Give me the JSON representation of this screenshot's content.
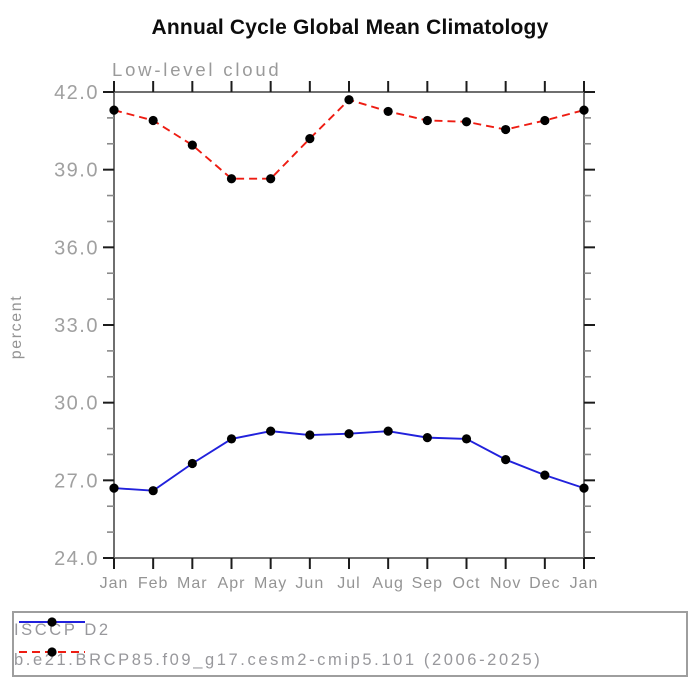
{
  "page": {
    "background": "#ffffff",
    "title": "Annual Cycle Global Mean Climatology",
    "subtitle": "Low-level cloud"
  },
  "chart_data": {
    "type": "line",
    "title": "Annual Cycle Global Mean Climatology",
    "subtitle": "Low-level cloud",
    "xlabel": "",
    "ylabel": "percent",
    "categories": [
      "Jan",
      "Feb",
      "Mar",
      "Apr",
      "May",
      "Jun",
      "Jul",
      "Aug",
      "Sep",
      "Oct",
      "Nov",
      "Dec",
      "Jan"
    ],
    "ylim": [
      24.0,
      42.0
    ],
    "ytick_major": [
      24.0,
      27.0,
      30.0,
      33.0,
      36.0,
      39.0,
      42.0
    ],
    "ytick_major_labels": [
      "24.0",
      "27.0",
      "30.0",
      "33.0",
      "36.0",
      "39.0",
      "42.0"
    ],
    "ytick_minor_step": 1.0,
    "grid": false,
    "legend_position": "bottom",
    "series": [
      {
        "name": "ISCCP D2",
        "line_style": "solid",
        "line_color": "#2121dc",
        "marker": "circle",
        "marker_color": "#000000",
        "values": [
          26.7,
          26.6,
          27.65,
          28.6,
          28.9,
          28.75,
          28.8,
          28.9,
          28.65,
          28.6,
          27.8,
          27.2,
          26.7
        ]
      },
      {
        "name": "b.e21.BRCP85.f09_g17.cesm2-cmip5.101 (2006-2025)",
        "line_style": "dashed",
        "line_color": "#ee1c12",
        "marker": "circle",
        "marker_color": "#000000",
        "values": [
          41.3,
          40.9,
          39.95,
          38.65,
          38.65,
          40.2,
          41.7,
          41.25,
          40.9,
          40.85,
          40.55,
          40.9,
          41.3
        ]
      }
    ]
  },
  "colors": {
    "axis_frame": "#6f6f6f",
    "major_tick": "#1c1c1c",
    "minor_tick": "#8a8a8a",
    "tick_label": "#a0a0a0",
    "text_gray": "#98989c",
    "title_black": "#0d0d0d"
  }
}
